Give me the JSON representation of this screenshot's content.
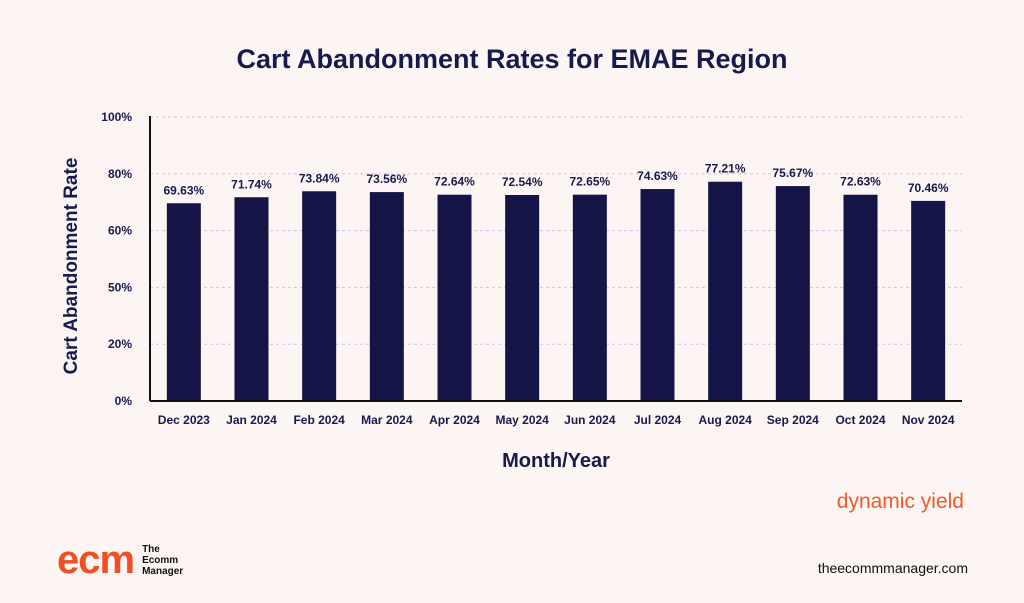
{
  "chart_data": {
    "type": "bar",
    "title": "Cart Abandonment Rates for EMAE Region",
    "xlabel": "Month/Year",
    "ylabel": "Cart Abandonment Rate",
    "categories": [
      "Dec 2023",
      "Jan 2024",
      "Feb 2024",
      "Mar 2024",
      "Apr 2024",
      "May 2024",
      "Jun 2024",
      "Jul 2024",
      "Aug 2024",
      "Sep 2024",
      "Oct 2024",
      "Nov 2024"
    ],
    "values": [
      69.63,
      71.74,
      73.84,
      73.56,
      72.64,
      72.54,
      72.65,
      74.63,
      77.21,
      75.67,
      72.63,
      70.46
    ],
    "value_labels": [
      "69.63%",
      "71.74%",
      "73.84%",
      "73.56%",
      "72.64%",
      "72.54%",
      "72.65%",
      "74.63%",
      "77.21%",
      "75.67%",
      "72.63%",
      "70.46%"
    ],
    "y_ticks": [
      "0%",
      "20%",
      "50%",
      "60%",
      "80%",
      "100%"
    ],
    "ylim": [
      0,
      100
    ],
    "grid": true,
    "bar_color": "#141446"
  },
  "source": "dynamic yield",
  "logo": {
    "mark": "ecm",
    "line1": "The",
    "line2": "Ecomm",
    "line3": "Manager"
  },
  "website": "theecommmanager.com",
  "colors": {
    "background": "#fdf5f3",
    "title": "#161a4d",
    "accent": "#f04e23"
  }
}
